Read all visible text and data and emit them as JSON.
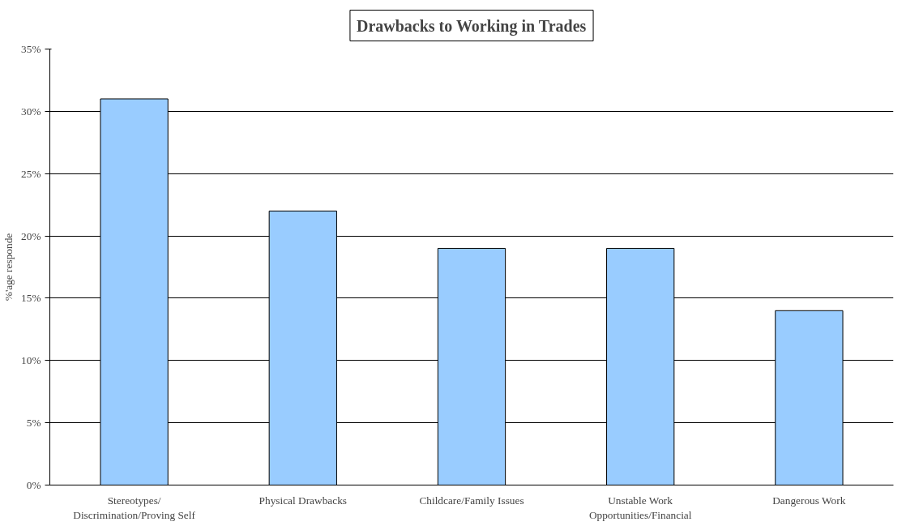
{
  "chart_data": {
    "type": "bar",
    "title": "Drawbacks to Working in Trades",
    "ylabel": "%'age responde",
    "categories": [
      "Stereotypes/ Discrimination/Proving Self",
      "Physical Drawbacks",
      "Childcare/Family Issues",
      "Unstable Work Opportunities/Financial",
      "Dangerous Work"
    ],
    "values": [
      31,
      22,
      19,
      19,
      14
    ],
    "color": "#99ccff",
    "ylim": [
      0,
      35
    ],
    "yticks": [
      {
        "value": 0,
        "label": "0%"
      },
      {
        "value": 5,
        "label": "5%"
      },
      {
        "value": 10,
        "label": "10%"
      },
      {
        "value": 15,
        "label": "15%"
      },
      {
        "value": 20,
        "label": "20%"
      },
      {
        "value": 25,
        "label": "25%"
      },
      {
        "value": 30,
        "label": "30%"
      },
      {
        "value": 35,
        "label": "35%"
      }
    ],
    "grid": "y"
  }
}
